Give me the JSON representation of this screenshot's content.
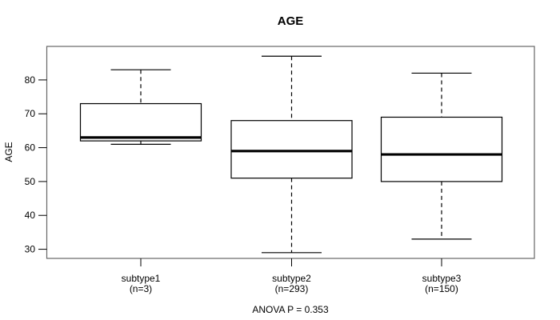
{
  "title": "AGE",
  "y_axis_label": "AGE",
  "footer": "ANOVA P = 0.353",
  "chart_data": {
    "type": "boxplot",
    "title": "AGE",
    "xlabel": "",
    "ylabel": "AGE",
    "ylim": [
      27.3,
      89.9
    ],
    "yticks": [
      30,
      40,
      50,
      60,
      70,
      80
    ],
    "grid": false,
    "whisker_linestyle": "dashed",
    "annotation": "ANOVA P = 0.353",
    "categories": [
      {
        "label": "subtype1",
        "sublabel": "(n=3)"
      },
      {
        "label": "subtype2",
        "sublabel": "(n=293)"
      },
      {
        "label": "subtype3",
        "sublabel": "(n=150)"
      }
    ],
    "series": [
      {
        "name": "subtype1",
        "n": 3,
        "min": 61,
        "q1": 62,
        "median": 63,
        "q3": 73,
        "max": 83
      },
      {
        "name": "subtype2",
        "n": 293,
        "min": 29,
        "q1": 51,
        "median": 59,
        "q3": 68,
        "max": 87
      },
      {
        "name": "subtype3",
        "n": 150,
        "min": 33,
        "q1": 50,
        "median": 58,
        "q3": 69,
        "max": 82
      }
    ],
    "colors": {
      "line": "#000000",
      "frame": "#666666",
      "box_fill": "#ffffff",
      "background": "#ffffff"
    }
  }
}
